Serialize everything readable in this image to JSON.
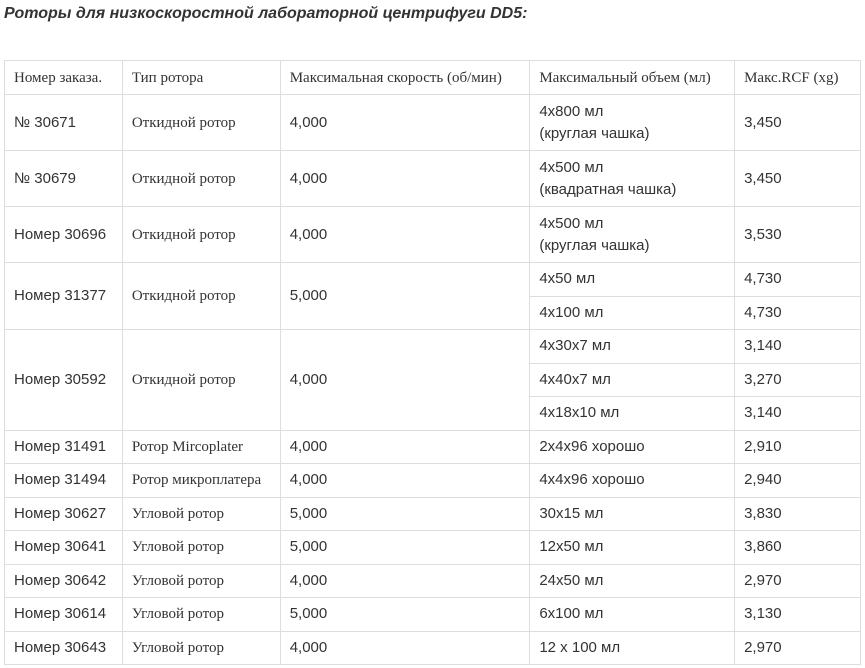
{
  "title": "Роторы для низкоскоростной лабораторной центрифуги DD5:",
  "table": {
    "header": [
      "Номер заказа.",
      "Тип ротора",
      "Максимальная скорость (об/мин)",
      "Максимальный объем (мл)",
      "Макс.RCF (xg)"
    ],
    "rows": [
      {
        "order": "№ 30671",
        "type": "Откидной ротор",
        "speed": "4,000",
        "volumes": [
          {
            "volume": "4x800 мл\n(круглая чашка)",
            "rcf": "3,450"
          }
        ]
      },
      {
        "order": "№ 30679",
        "type": "Откидной ротор",
        "speed": "4,000",
        "volumes": [
          {
            "volume": "4x500 мл\n(квадратная чашка)",
            "rcf": "3,450"
          }
        ]
      },
      {
        "order": "Номер 30696",
        "type": "Откидной ротор",
        "speed": "4,000",
        "volumes": [
          {
            "volume": "4x500 мл\n(круглая чашка)",
            "rcf": "3,530"
          }
        ]
      },
      {
        "order": "Номер 31377",
        "type": "Откидной ротор",
        "speed": "5,000",
        "volumes": [
          {
            "volume": "4x50 мл",
            "rcf": "4,730"
          },
          {
            "volume": "4x100 мл",
            "rcf": "4,730"
          }
        ]
      },
      {
        "order": "Номер 30592",
        "type": "Откидной ротор",
        "speed": "4,000",
        "volumes": [
          {
            "volume": "4x30x7 мл",
            "rcf": "3,140"
          },
          {
            "volume": "4x40x7 мл",
            "rcf": "3,270"
          },
          {
            "volume": "4x18x10 мл",
            "rcf": "3,140"
          }
        ]
      },
      {
        "order": "Номер 31491",
        "type": "Ротор Mircoplater",
        "speed": "4,000",
        "volumes": [
          {
            "volume": "2x4x96 хорошо",
            "rcf": "2,910"
          }
        ]
      },
      {
        "order": "Номер 31494",
        "type": "Ротор микроплатера",
        "speed": "4,000",
        "volumes": [
          {
            "volume": "4x4x96 хорошо",
            "rcf": "2,940"
          }
        ]
      },
      {
        "order": "Номер 30627",
        "type": "Угловой ротор",
        "speed": "5,000",
        "volumes": [
          {
            "volume": "30x15 мл",
            "rcf": "3,830"
          }
        ]
      },
      {
        "order": "Номер 30641",
        "type": "Угловой ротор",
        "speed": "5,000",
        "volumes": [
          {
            "volume": "12x50 мл",
            "rcf": "3,860"
          }
        ]
      },
      {
        "order": "Номер 30642",
        "type": "Угловой ротор",
        "speed": "4,000",
        "volumes": [
          {
            "volume": "24x50 мл",
            "rcf": "2,970"
          }
        ]
      },
      {
        "order": "Номер 30614",
        "type": "Угловой ротор",
        "speed": "5,000",
        "volumes": [
          {
            "volume": "6x100 мл",
            "rcf": "3,130"
          }
        ]
      },
      {
        "order": "Номер 30643",
        "type": "Угловой ротор",
        "speed": "4,000",
        "volumes": [
          {
            "volume": "12 x 100 мл",
            "rcf": "2,970"
          }
        ]
      }
    ]
  }
}
